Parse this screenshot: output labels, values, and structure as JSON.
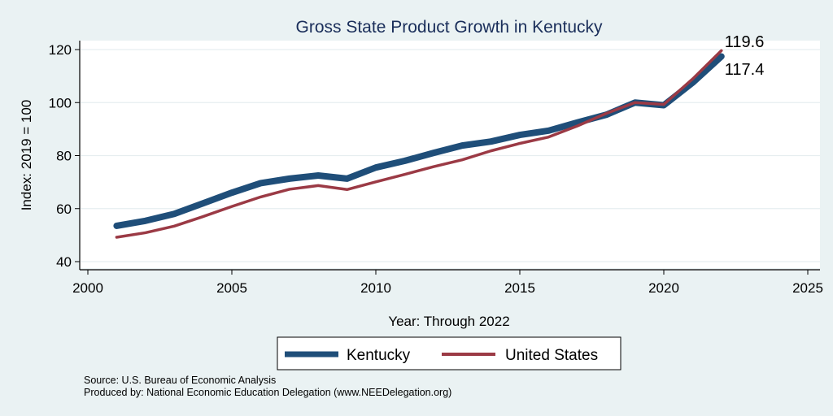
{
  "chart_data": {
    "type": "line",
    "title": "Gross State Product Growth in Kentucky",
    "xlabel": "Year: Through 2022",
    "ylabel": "Index: 2019 = 100",
    "xlim": [
      2000,
      2025
    ],
    "ylim": [
      40,
      120
    ],
    "x_ticks": [
      2000,
      2005,
      2010,
      2015,
      2020,
      2025
    ],
    "y_ticks": [
      40,
      60,
      80,
      100,
      120
    ],
    "grid": "horizontal",
    "legend_position": "bottom",
    "x": [
      2001,
      2002,
      2003,
      2004,
      2005,
      2006,
      2007,
      2008,
      2009,
      2010,
      2011,
      2012,
      2013,
      2014,
      2015,
      2016,
      2017,
      2018,
      2019,
      2020,
      2021,
      2022
    ],
    "series": [
      {
        "name": "Kentucky",
        "color": "#1f4e79",
        "values": [
          53.5,
          55.4,
          58.0,
          62.0,
          66.0,
          69.6,
          71.3,
          72.5,
          71.3,
          75.5,
          78.0,
          81.0,
          83.8,
          85.3,
          87.8,
          89.4,
          92.5,
          95.4,
          100.0,
          99.0,
          107.5,
          117.4
        ]
      },
      {
        "name": "United States",
        "color": "#9b3a45",
        "values": [
          49.2,
          50.9,
          53.4,
          57.0,
          60.8,
          64.4,
          67.3,
          68.7,
          67.2,
          70.1,
          72.9,
          75.8,
          78.4,
          81.8,
          84.6,
          87.0,
          91.2,
          95.9,
          100.0,
          99.3,
          108.9,
          119.6
        ]
      }
    ],
    "annotations": [
      {
        "series": "United States",
        "x": 2022,
        "label": "119.6"
      },
      {
        "series": "Kentucky",
        "x": 2022,
        "label": "117.4"
      }
    ],
    "notes": [
      "Source: U.S. Bureau of Economic Analysis",
      "Produced by: National Economic Education Delegation (www.NEEDelegation.org)"
    ]
  },
  "colors": {
    "background": "#eaf2f3",
    "plot_background": "#ffffff",
    "grid": "#e6eef0",
    "title": "#1a2e5a"
  }
}
